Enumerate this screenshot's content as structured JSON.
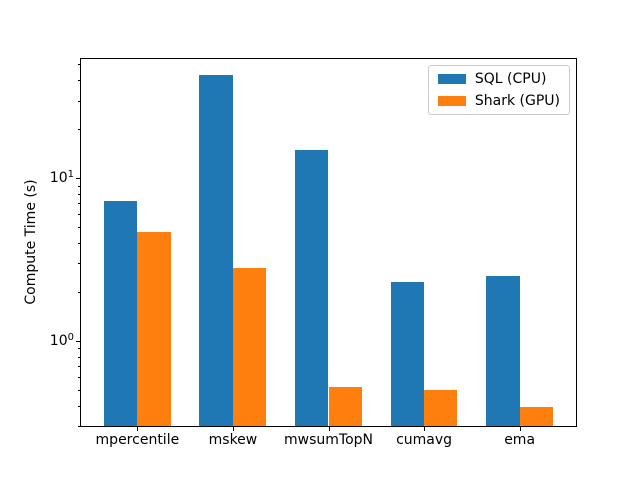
{
  "figure": {
    "background": "#ffffff"
  },
  "colors": {
    "sql_cpu": "#1f77b4",
    "shark_gpu": "#ff7f0e",
    "spine": "#000000",
    "legend_border": "#cccccc"
  },
  "chart_data": {
    "type": "bar",
    "title": "",
    "xlabel": "",
    "ylabel": "Compute Time (s)",
    "yscale": "log",
    "ylim": [
      0.3,
      54
    ],
    "xlim": [
      -0.59,
      4.59
    ],
    "bar_width": 0.35,
    "grid": false,
    "legend_position": "upper right",
    "categories": [
      "mpercentile",
      "mskew",
      "mwsumTopN",
      "cumavg",
      "ema"
    ],
    "series": [
      {
        "name": "SQL (CPU)",
        "color": "#1f77b4",
        "values": [
          7.2,
          43,
          15,
          2.3,
          2.5
        ]
      },
      {
        "name": "Shark (GPU)",
        "color": "#ff7f0e",
        "values": [
          4.7,
          2.8,
          0.52,
          0.5,
          0.39
        ]
      }
    ],
    "y_major_ticks": [
      {
        "value": 1,
        "base": "10",
        "exp": "0"
      },
      {
        "value": 10,
        "base": "10",
        "exp": "1"
      }
    ]
  }
}
